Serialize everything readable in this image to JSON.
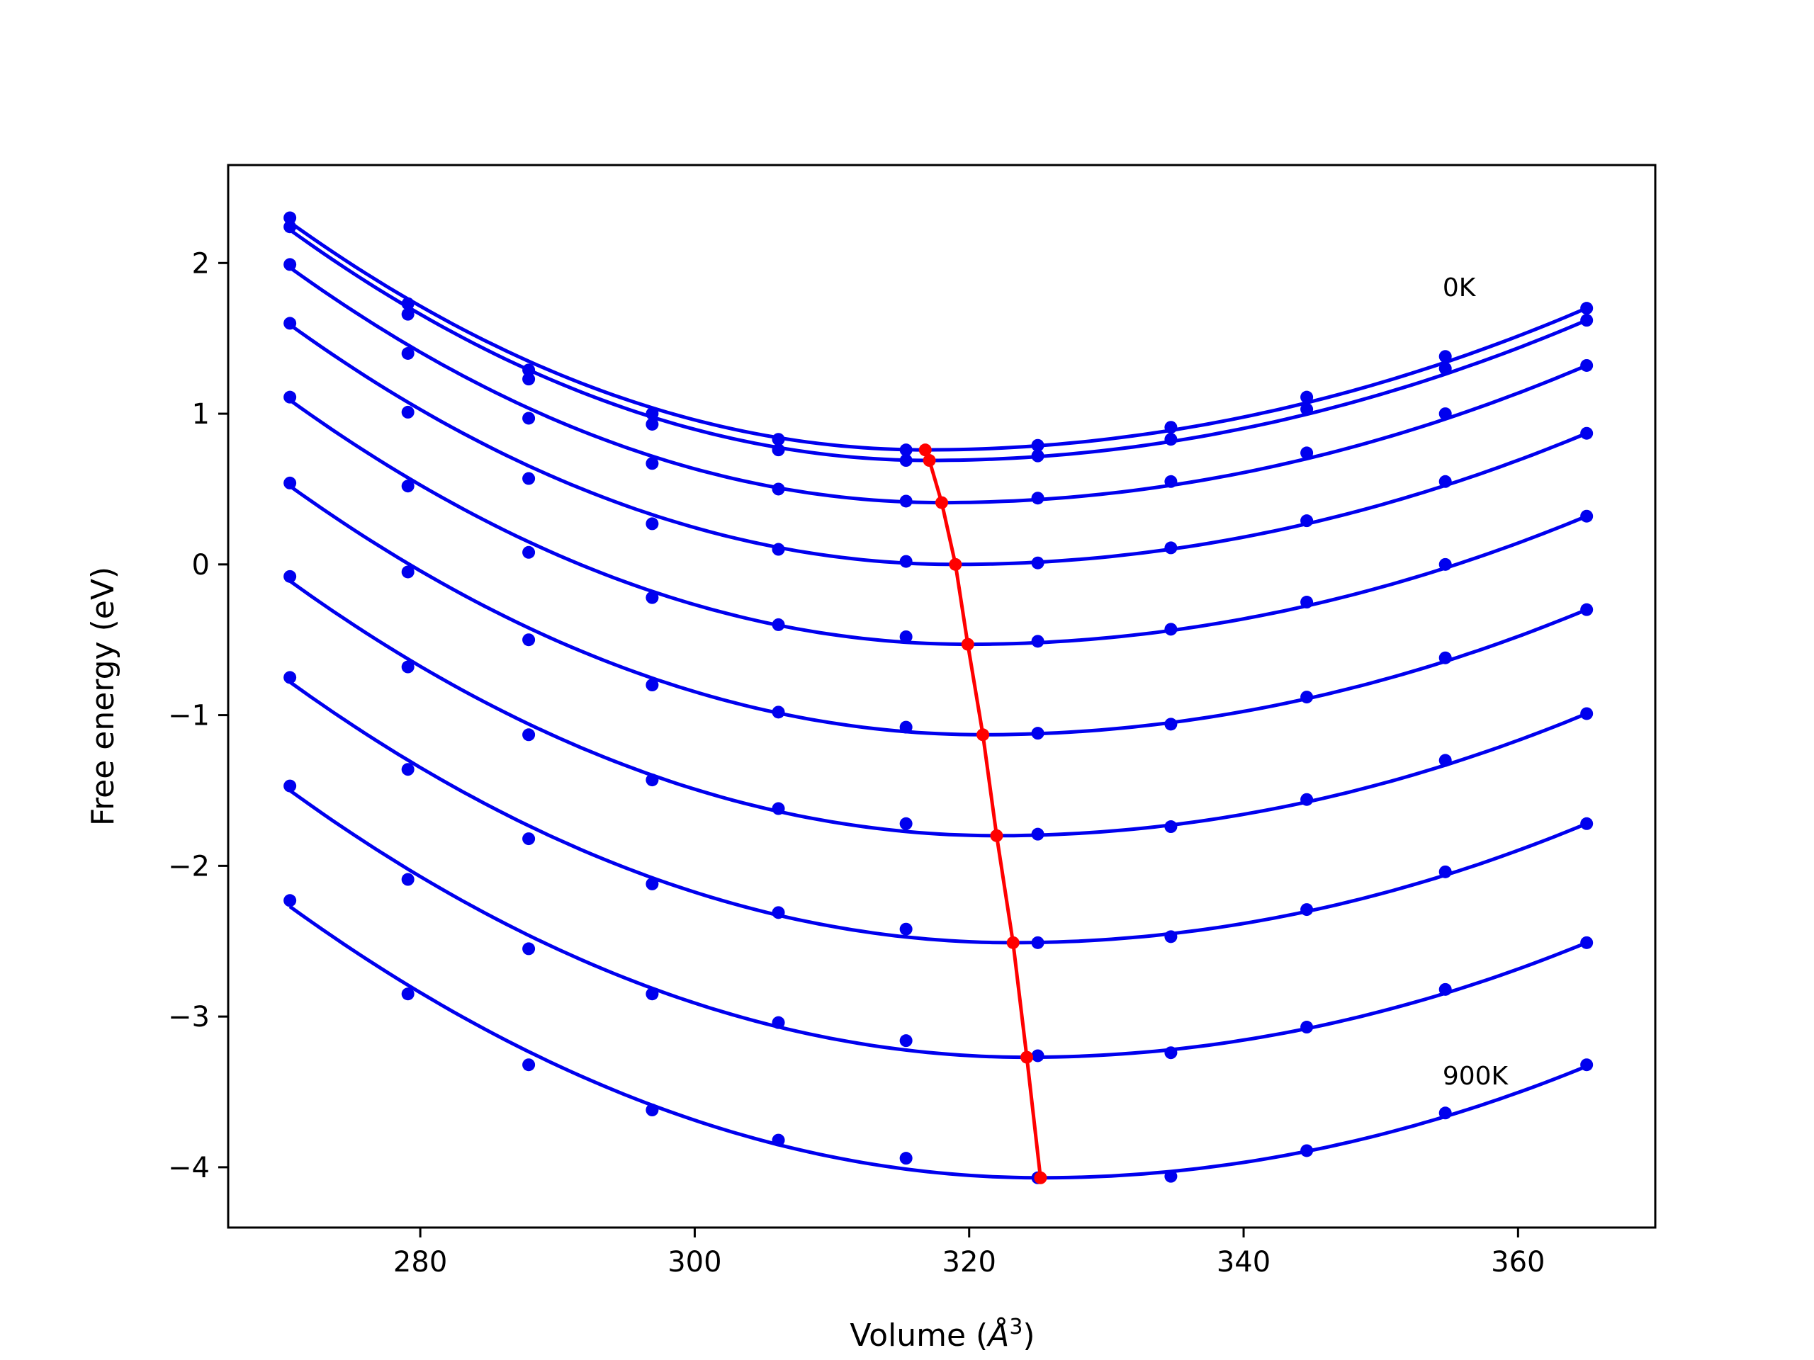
{
  "chart_data": {
    "type": "line",
    "xlabel": "Volume (",
    "xlabel_symbol": "Å",
    "xlabel_exponent": "3",
    "xlabel_close": ")",
    "ylabel": "Free energy (eV)",
    "xlim": [
      266,
      370
    ],
    "ylim": [
      -4.4,
      2.65
    ],
    "xticks": [
      280,
      300,
      320,
      340,
      360
    ],
    "yticks": [
      -4,
      -3,
      -2,
      -1,
      0,
      1,
      2
    ],
    "xtick_labels": [
      "280",
      "300",
      "320",
      "340",
      "360"
    ],
    "ytick_labels": [
      "−4",
      "−3",
      "−2",
      "−1",
      "0",
      "1",
      "2"
    ],
    "annotations": [
      {
        "text": "0K",
        "x": 354.5,
        "y": 1.78
      },
      {
        "text": "900K",
        "x": 354.5,
        "y": -3.45
      }
    ],
    "curve_color": "#0000ee",
    "min_color": "#ff0000",
    "x": [
      270.5,
      279.1,
      287.9,
      296.9,
      306.1,
      315.4,
      325.0,
      334.7,
      344.6,
      354.7,
      365.0
    ],
    "series": [
      {
        "points": [
          2.3,
          1.73,
          1.29,
          1.0,
          0.83,
          0.76,
          0.79,
          0.91,
          1.11,
          1.38,
          1.7
        ],
        "curve": [
          2.27,
          0.76,
          1.7
        ],
        "vmin": 316.8
      },
      {
        "points": [
          2.24,
          1.66,
          1.23,
          0.93,
          0.76,
          0.69,
          0.72,
          0.83,
          1.03,
          1.3,
          1.62
        ],
        "curve": [
          2.22,
          0.69,
          1.62
        ],
        "vmin": 317.1
      },
      {
        "points": [
          1.99,
          1.4,
          0.97,
          0.67,
          0.5,
          0.42,
          0.44,
          0.55,
          0.74,
          1.0,
          1.32
        ],
        "curve": [
          1.97,
          0.41,
          1.32
        ],
        "vmin": 318.0
      },
      {
        "points": [
          1.6,
          1.01,
          0.57,
          0.27,
          0.1,
          0.02,
          0.01,
          0.11,
          0.29,
          0.55,
          0.87
        ],
        "curve": [
          1.59,
          0.0,
          0.87
        ],
        "vmin": 319.0
      },
      {
        "points": [
          1.11,
          0.52,
          0.08,
          -0.22,
          -0.4,
          -0.48,
          -0.51,
          -0.43,
          -0.25,
          0.0,
          0.32
        ],
        "curve": [
          1.09,
          -0.53,
          0.32
        ],
        "vmin": 319.9
      },
      {
        "points": [
          0.54,
          -0.05,
          -0.5,
          -0.8,
          -0.98,
          -1.08,
          -1.12,
          -1.06,
          -0.88,
          -0.62,
          -0.3
        ],
        "curve": [
          0.52,
          -1.13,
          -0.3
        ],
        "vmin": 321.0
      },
      {
        "points": [
          -0.08,
          -0.68,
          -1.13,
          -1.43,
          -1.62,
          -1.72,
          -1.79,
          -1.74,
          -1.56,
          -1.3,
          -0.99
        ],
        "curve": [
          -0.11,
          -1.8,
          -0.99
        ],
        "vmin": 322.0
      },
      {
        "points": [
          -0.75,
          -1.36,
          -1.82,
          -2.12,
          -2.31,
          -2.42,
          -2.51,
          -2.47,
          -2.29,
          -2.04,
          -1.72
        ],
        "curve": [
          -0.78,
          -2.51,
          -1.72
        ],
        "vmin": 323.2
      },
      {
        "points": [
          -1.47,
          -2.09,
          -2.55,
          -2.85,
          -3.04,
          -3.16,
          -3.26,
          -3.24,
          -3.07,
          -2.82,
          -2.51
        ],
        "curve": [
          -1.5,
          -3.27,
          -2.51
        ],
        "vmin": 324.2
      },
      {
        "points": [
          -2.23,
          -2.85,
          -3.32,
          -3.62,
          -3.82,
          -3.94,
          -4.07,
          -4.06,
          -3.89,
          -3.64,
          -3.32
        ],
        "curve": [
          -2.27,
          -4.07,
          -3.33
        ],
        "vmin": 325.2
      }
    ]
  }
}
